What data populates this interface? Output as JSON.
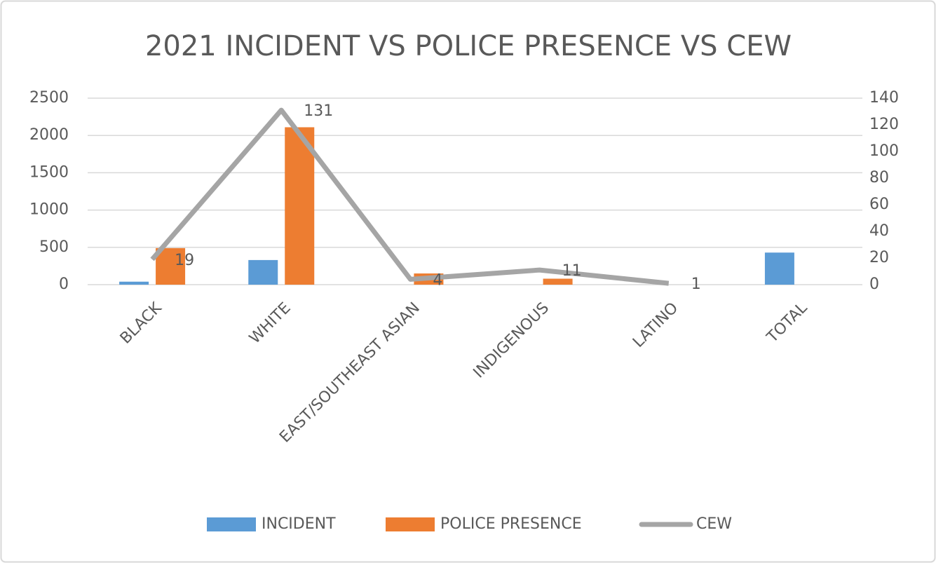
{
  "chart_data": {
    "type": "bar-line",
    "title": "2021 INCIDENT VS POLICE PRESENCE VS CEW",
    "categories": [
      "BLACK",
      "WHITE",
      "EAST/SOUTHEAST ASIAN",
      "INDIGENOUS",
      "LATINO",
      "TOTAL"
    ],
    "series": [
      {
        "name": "INCIDENT",
        "type": "bar",
        "color": "#5b9bd5",
        "values": [
          40,
          330,
          null,
          null,
          null,
          430
        ]
      },
      {
        "name": "POLICE PRESENCE",
        "type": "bar",
        "color": "#ed7d31",
        "values": [
          490,
          2110,
          150,
          80,
          null,
          null
        ]
      },
      {
        "name": "CEW",
        "type": "line",
        "axis": "y2",
        "color": "#a5a5a5",
        "data_labels": true,
        "values": [
          19,
          131,
          4,
          11,
          1,
          null
        ]
      }
    ],
    "ylim": [
      0,
      2500
    ],
    "yticks": [
      0,
      500,
      1000,
      1500,
      2000,
      2500
    ],
    "y2lim": [
      0,
      140
    ],
    "y2ticks": [
      0,
      20,
      40,
      60,
      80,
      100,
      120,
      140
    ],
    "grid": true,
    "legend": "bottom"
  }
}
